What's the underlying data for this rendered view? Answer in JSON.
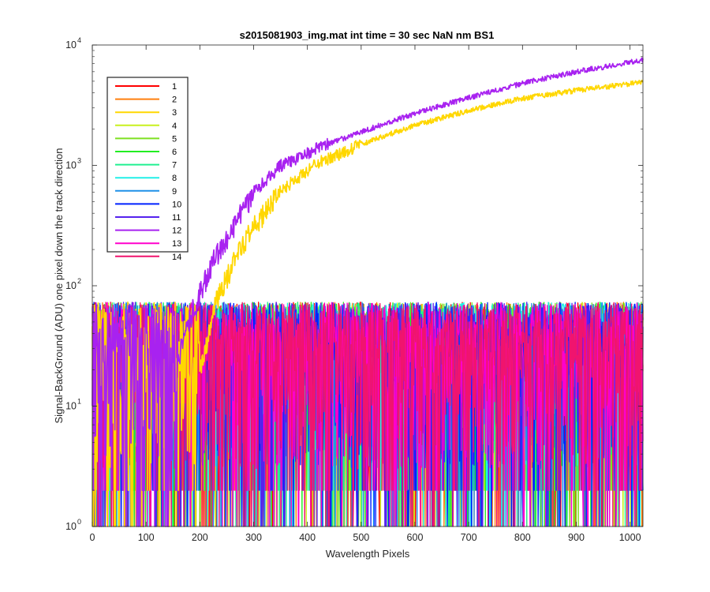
{
  "chart_data": {
    "type": "line",
    "title": "s2015081903_img.mat int time = 30 sec  NaN nm BS1",
    "xlabel": "Wavelength Pixels",
    "ylabel": "Signal-BackGround (ADU) one pixel down the track direction",
    "xlim": [
      0,
      1024
    ],
    "ylim": [
      1,
      10000
    ],
    "yscale": "log",
    "grid": false,
    "legend_position": "top-left",
    "x_ticks": [
      "0",
      "100",
      "200",
      "300",
      "400",
      "500",
      "600",
      "700",
      "800",
      "900",
      "1000"
    ],
    "y_ticks": [
      {
        "base": "10",
        "exp": "0"
      },
      {
        "base": "10",
        "exp": "1"
      },
      {
        "base": "10",
        "exp": "2"
      },
      {
        "base": "10",
        "exp": "3"
      },
      {
        "base": "10",
        "exp": "4"
      }
    ],
    "series": [
      {
        "name": "1",
        "color": "#ff0000",
        "kind": "noise"
      },
      {
        "name": "2",
        "color": "#ff7f0e",
        "kind": "noise"
      },
      {
        "name": "3",
        "color": "#ffd700",
        "kind": "signal",
        "points": [
          [
            200,
            20
          ],
          [
            230,
            75
          ],
          [
            280,
            230
          ],
          [
            350,
            620
          ],
          [
            420,
            1050
          ],
          [
            500,
            1500
          ],
          [
            600,
            2150
          ],
          [
            700,
            2850
          ],
          [
            800,
            3600
          ],
          [
            900,
            4200
          ],
          [
            1024,
            4900
          ]
        ]
      },
      {
        "name": "4",
        "color": "#c8f01e",
        "kind": "noise"
      },
      {
        "name": "5",
        "color": "#7ee020",
        "kind": "noise"
      },
      {
        "name": "6",
        "color": "#22ee22",
        "kind": "noise"
      },
      {
        "name": "7",
        "color": "#20f090",
        "kind": "noise"
      },
      {
        "name": "8",
        "color": "#22f0e8",
        "kind": "noise"
      },
      {
        "name": "9",
        "color": "#1e90e8",
        "kind": "noise"
      },
      {
        "name": "10",
        "color": "#0022ff",
        "kind": "noise"
      },
      {
        "name": "11",
        "color": "#5522ee",
        "kind": "noise"
      },
      {
        "name": "12",
        "color": "#a822f0",
        "kind": "signal",
        "points": [
          [
            160,
            25
          ],
          [
            185,
            60
          ],
          [
            230,
            180
          ],
          [
            300,
            600
          ],
          [
            350,
            1000
          ],
          [
            420,
            1400
          ],
          [
            500,
            1900
          ],
          [
            600,
            2700
          ],
          [
            700,
            3650
          ],
          [
            800,
            4800
          ],
          [
            900,
            6000
          ],
          [
            1024,
            7500
          ]
        ]
      },
      {
        "name": "13",
        "color": "#ff00cc",
        "kind": "noise"
      },
      {
        "name": "14",
        "color": "#f0146e",
        "kind": "noise"
      }
    ]
  }
}
